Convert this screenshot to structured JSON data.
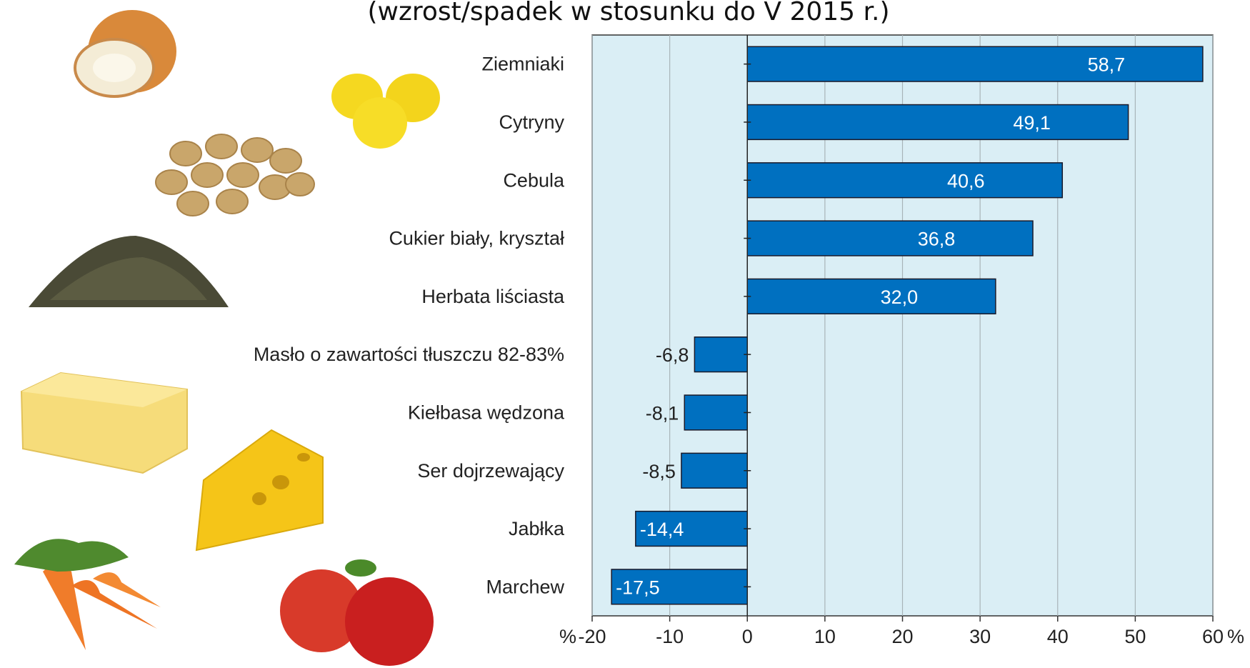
{
  "chart_data": {
    "type": "hbar",
    "title": "(wzrost/spadek w stosunku do V 2015 r.)",
    "x_unit": "%",
    "categories": [
      "Ziemniaki",
      "Cytryny",
      "Cebula",
      "Cukier biały, kryształ",
      "Herbata liściasta",
      "Masło o zawartości tłuszczu 82-83%",
      "Kiełbasa wędzona",
      "Ser dojrzewający",
      "Jabłka",
      "Marchew"
    ],
    "values": [
      58.7,
      49.1,
      40.6,
      36.8,
      32.0,
      -6.8,
      -8.1,
      -8.5,
      -14.4,
      -17.5
    ],
    "value_labels": [
      "58,7",
      "49,1",
      "40,6",
      "36,8",
      "32,0",
      "-6,8",
      "-8,1",
      "-8,5",
      "-14,4",
      "-17,5"
    ],
    "color": "#0070c0",
    "xlim": [
      -20,
      60
    ],
    "xticks": [
      -20,
      -10,
      0,
      10,
      20,
      30,
      40,
      50,
      60
    ],
    "grid": true
  }
}
